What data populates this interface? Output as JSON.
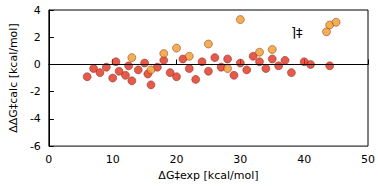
{
  "chart_data": {
    "type": "scatter",
    "x_label": "ΔG‡exp [kcal/mol]",
    "y_label": "ΔΔG‡calc [kcal/mol]",
    "annotations": [
      "⌉‡"
    ],
    "xlim": [
      0,
      50
    ],
    "xticks": [
      0,
      10,
      20,
      30,
      40,
      50
    ],
    "ylim": [
      -6,
      4
    ],
    "yticks": [
      -6,
      -4,
      -2,
      0,
      2,
      4
    ],
    "hlines": [
      0
    ],
    "grid": false,
    "series": [
      {
        "color": "#e0301e",
        "marker": "circle",
        "x": [
          6,
          7,
          8,
          9,
          10,
          10.5,
          11,
          12,
          12.5,
          13,
          14,
          15,
          15.5,
          16,
          17,
          18,
          19,
          20,
          21,
          22,
          23,
          24,
          25,
          26,
          27,
          28,
          29,
          30,
          31,
          32,
          33,
          34,
          35,
          36,
          37,
          38,
          40,
          41,
          44
        ],
        "values": [
          -0.9,
          -0.3,
          -0.6,
          -0.2,
          -1.0,
          0.2,
          -0.5,
          -0.8,
          -0.1,
          -1.2,
          -0.4,
          0.1,
          -0.7,
          -1.5,
          -0.2,
          0.3,
          -0.6,
          -0.9,
          0.4,
          -0.3,
          -1.1,
          0.2,
          -0.5,
          0.5,
          -0.2,
          0.4,
          -0.8,
          0.1,
          -0.4,
          0.6,
          0.2,
          -0.3,
          0.4,
          -0.1,
          0.3,
          -0.6,
          0.2,
          0.0,
          -0.1
        ]
      },
      {
        "color": "#f39a2c",
        "marker": "circle",
        "x": [
          13,
          16,
          18,
          20,
          22,
          25,
          28,
          30,
          33,
          35,
          43.5,
          44,
          45
        ],
        "values": [
          0.5,
          -0.4,
          0.8,
          1.2,
          0.6,
          1.5,
          -0.3,
          3.3,
          0.9,
          1.1,
          2.4,
          2.9,
          3.1
        ]
      }
    ]
  }
}
